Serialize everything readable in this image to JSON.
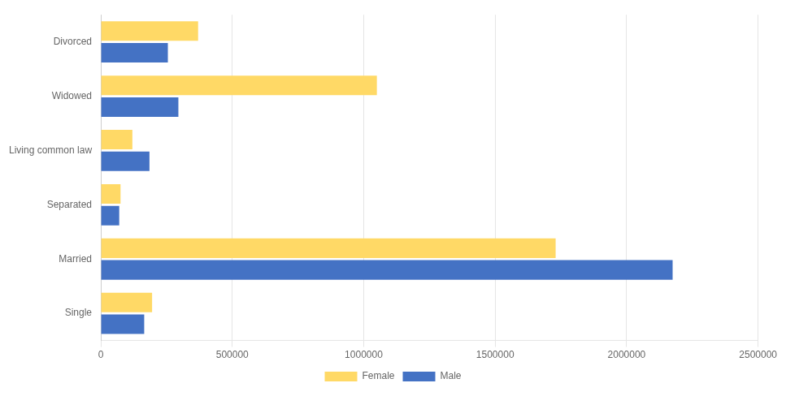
{
  "chart_data": {
    "type": "bar",
    "orientation": "horizontal",
    "categories": [
      "Single",
      "Married",
      "Separated",
      "Living common law",
      "Widowed",
      "Divorced"
    ],
    "series": [
      {
        "name": "Female",
        "color": "#FFD966",
        "values": [
          195000,
          1730000,
          75000,
          120000,
          1050000,
          370000
        ]
      },
      {
        "name": "Male",
        "color": "#4472C4",
        "values": [
          165000,
          2175000,
          70000,
          185000,
          295000,
          255000
        ]
      }
    ],
    "xlim": [
      0,
      2500000
    ],
    "xticks": [
      0,
      500000,
      1000000,
      1500000,
      2000000,
      2500000
    ],
    "grid": true,
    "legend": "bottom"
  }
}
